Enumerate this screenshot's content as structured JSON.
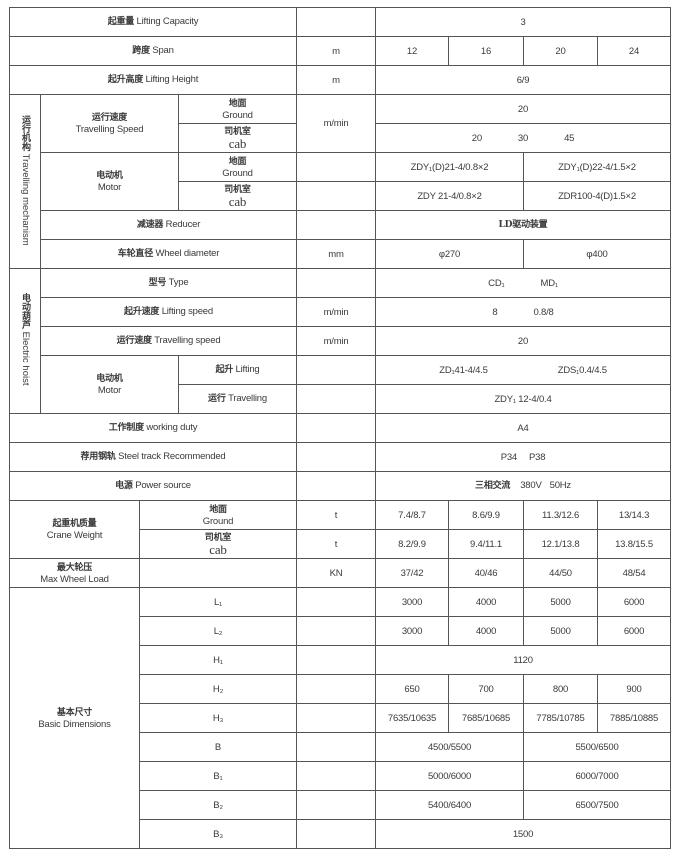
{
  "rows": {
    "capacity": {
      "zh": "起重量",
      "en": "Lifting Capacity",
      "unit": "",
      "value": "3"
    },
    "span": {
      "zh": "跨度",
      "en": "Span",
      "unit": "m",
      "values": [
        "12",
        "16",
        "20",
        "24"
      ]
    },
    "lift_height": {
      "zh": "起升高度",
      "en": "Lifting Height",
      "unit": "m",
      "value": "6/9"
    },
    "travelling_mechanism": {
      "group_zh": "运行机构",
      "group_en": "Travelling mechanism",
      "speed": {
        "zh": "运行速度",
        "en": "Travelling Speed",
        "unit": "m/min",
        "ground": {
          "zh": "地面",
          "en": "Ground",
          "value": "20"
        },
        "cab": {
          "zh": "司机室",
          "en": "cab",
          "values": [
            "20",
            "30",
            "45"
          ]
        }
      },
      "motor": {
        "zh": "电动机",
        "en": "Motor",
        "ground": {
          "zh": "地面",
          "en": "Ground",
          "values": [
            "ZDY₁(D)21-4/0.8×2",
            "ZDY₁(D)22-4/1.5×2"
          ]
        },
        "cab": {
          "zh": "司机室",
          "en": "cab",
          "values": [
            "ZDY 21-4/0.8×2",
            "ZDR100-4(D)1.5×2"
          ]
        }
      },
      "reducer": {
        "zh": "减速器",
        "en": "Reducer",
        "value": "LD驱动装置"
      },
      "wheel": {
        "zh": "车轮直径",
        "en": "Wheel diameter",
        "unit": "mm",
        "values": [
          "φ270",
          "φ400"
        ]
      }
    },
    "electric_hoist": {
      "group_zh": "电动葫芦",
      "group_en": "Electric hoist",
      "type": {
        "zh": "型号",
        "en": "Type",
        "values": [
          "CD₁",
          "MD₁"
        ]
      },
      "lift_speed": {
        "zh": "起升速度",
        "en": "Lifting speed",
        "unit": "m/min",
        "values": [
          "8",
          "0.8/8"
        ]
      },
      "trav_speed": {
        "zh": "运行速度",
        "en": "Travelling speed",
        "unit": "m/min",
        "value": "20"
      },
      "motor": {
        "zh": "电动机",
        "en": "Motor",
        "lifting": {
          "zh": "起升",
          "en": "Lifting",
          "values": [
            "ZD₁41-4/4.5",
            "ZDS₁0.4/4.5"
          ]
        },
        "travelling": {
          "zh": "运行",
          "en": "Travelling",
          "value": "ZDY₁ 12-4/0.4"
        }
      }
    },
    "duty": {
      "zh": "工作制度",
      "en": "working duty",
      "value": "A4"
    },
    "track": {
      "zh": "荐用钢轨",
      "en": "Steel track Recommended",
      "values": [
        "P34",
        "P38"
      ]
    },
    "power": {
      "zh": "电源",
      "en": "Power source",
      "value_zh": "三相交流",
      "values": [
        "380V",
        "50Hz"
      ]
    },
    "crane_weight": {
      "zh": "起重机质量",
      "en": "Crane Weight",
      "ground": {
        "zh": "地面",
        "en": "Ground",
        "unit": "t",
        "values": [
          "7.4/8.7",
          "8.6/9.9",
          "11.3/12.6",
          "13/14.3"
        ]
      },
      "cab": {
        "zh": "司机室",
        "en": "cab",
        "unit": "t",
        "values": [
          "8.2/9.9",
          "9.4/11.1",
          "12.1/13.8",
          "13.8/15.5"
        ]
      }
    },
    "max_wheel": {
      "zh": "最大轮压",
      "en": "Max Wheel Load",
      "unit": "KN",
      "values": [
        "37/42",
        "40/46",
        "44/50",
        "48/54"
      ]
    },
    "basic_dimensions": {
      "zh": "基本尺寸",
      "en": "Basic Dimensions",
      "L1": {
        "label": "L₁",
        "values": [
          "3000",
          "4000",
          "5000",
          "6000"
        ]
      },
      "L2": {
        "label": "L₂",
        "values": [
          "3000",
          "4000",
          "5000",
          "6000"
        ]
      },
      "H1": {
        "label": "H₁",
        "value": "1120"
      },
      "H2": {
        "label": "H₂",
        "values": [
          "650",
          "700",
          "800",
          "900"
        ]
      },
      "H3": {
        "label": "H₃",
        "values": [
          "7635/10635",
          "7685/10685",
          "7785/10785",
          "7885/10885"
        ]
      },
      "B": {
        "label": "B",
        "values": [
          "4500/5500",
          "5500/6500"
        ]
      },
      "B1": {
        "label": "B₁",
        "values": [
          "5000/6000",
          "6000/7000"
        ]
      },
      "B2": {
        "label": "B₂",
        "values": [
          "5400/6400",
          "6500/7500"
        ]
      },
      "B3": {
        "label": "B₃",
        "value": "1500"
      }
    }
  }
}
